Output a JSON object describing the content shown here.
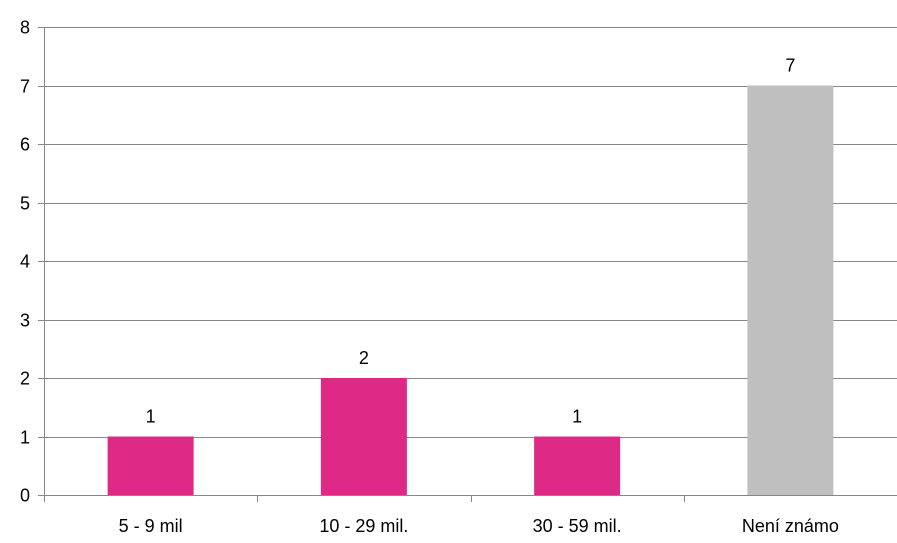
{
  "chart_data": {
    "type": "bar",
    "categories": [
      "5 - 9 mil",
      "10 - 29 mil.",
      "30 - 59 mil.",
      "Není známo"
    ],
    "values": [
      1,
      2,
      1,
      7
    ],
    "data_labels": [
      "1",
      "2",
      "1",
      "7"
    ],
    "bar_colors": [
      "#de2a86",
      "#de2a86",
      "#de2a86",
      "#bfbfbf"
    ],
    "ylim": [
      0,
      8
    ],
    "yticks": [
      "0",
      "1",
      "2",
      "3",
      "4",
      "5",
      "6",
      "7",
      "8"
    ],
    "grid": true,
    "legend": "none",
    "colors": {
      "grid": "#878787",
      "axis": "#878787",
      "text": "#000000"
    }
  }
}
